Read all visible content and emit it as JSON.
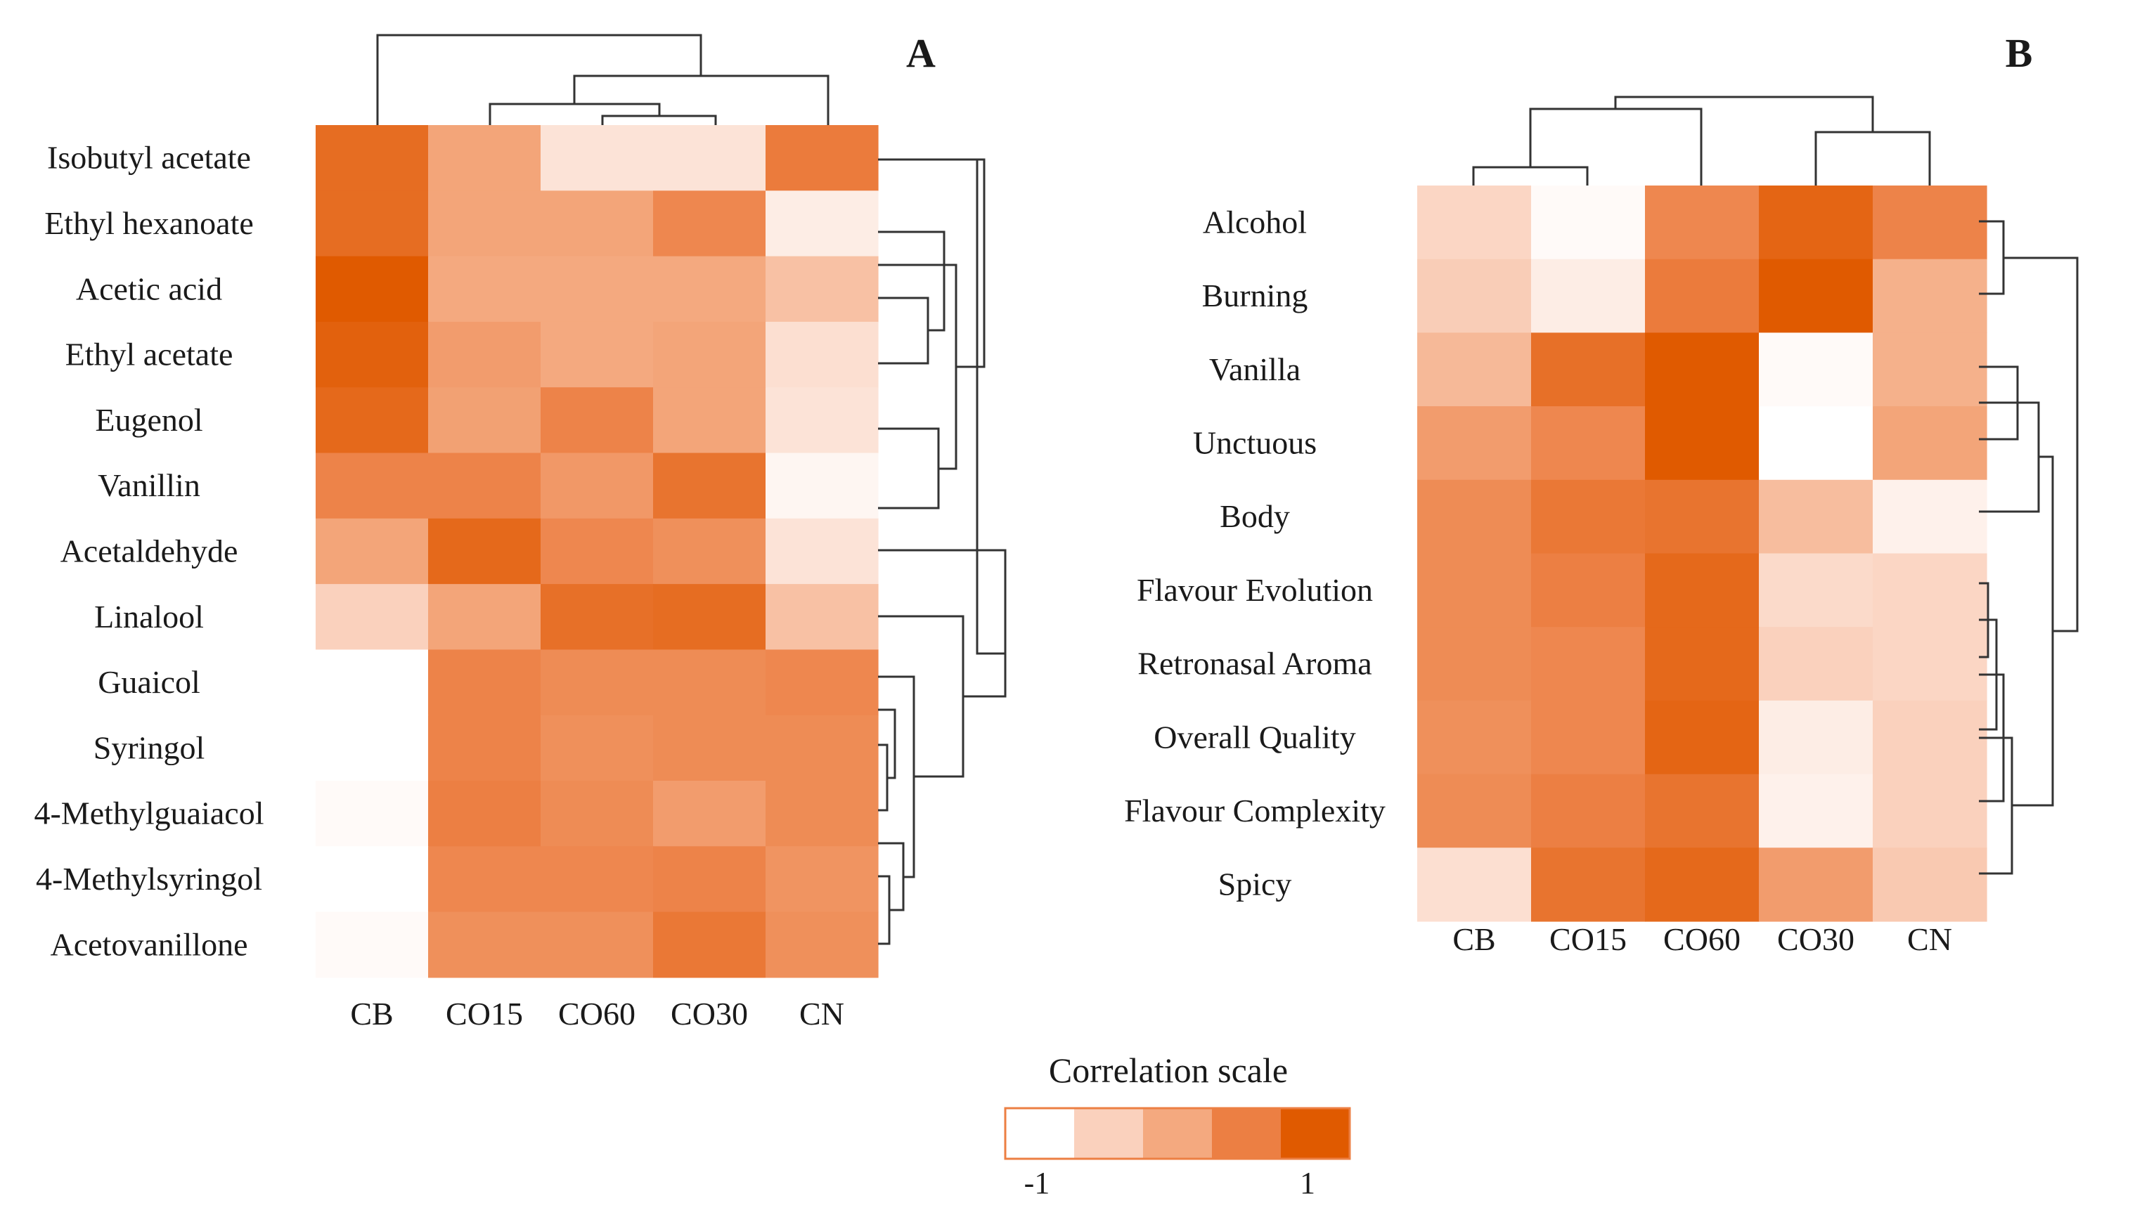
{
  "chart_data": [
    {
      "type": "heatmap",
      "panel": "A",
      "columns": [
        "CB",
        "CO15",
        "CO60",
        "CO30",
        "CN"
      ],
      "rows": [
        "Isobutyl acetate",
        "Ethyl hexanoate",
        "Acetic acid",
        "Ethyl acetate",
        "Eugenol",
        "Vanillin",
        "Acetaldehyde",
        "Linalool",
        "Guaicol",
        "Syringol",
        "4-Methylguaiacol",
        "4-Methylsyringol",
        "Acetovanillone"
      ],
      "values": [
        [
          0.75,
          0.05,
          -0.7,
          -0.7,
          0.55
        ],
        [
          0.75,
          0.05,
          0.05,
          0.4,
          -0.8
        ],
        [
          1.0,
          0.0,
          0.0,
          0.0,
          -0.3
        ],
        [
          0.9,
          0.15,
          0.0,
          0.05,
          -0.65
        ],
        [
          0.8,
          0.1,
          0.45,
          0.05,
          -0.7
        ],
        [
          0.45,
          0.45,
          0.2,
          0.65,
          -0.9
        ],
        [
          0.05,
          0.8,
          0.4,
          0.3,
          -0.7
        ],
        [
          -0.5,
          0.05,
          0.7,
          0.75,
          -0.3
        ],
        [
          -1.0,
          0.45,
          0.35,
          0.35,
          0.4
        ],
        [
          -1.0,
          0.45,
          0.3,
          0.35,
          0.35
        ],
        [
          -0.95,
          0.5,
          0.35,
          0.15,
          0.35
        ],
        [
          -1.0,
          0.4,
          0.4,
          0.45,
          0.25
        ],
        [
          -0.95,
          0.3,
          0.3,
          0.6,
          0.3
        ]
      ]
    },
    {
      "type": "heatmap",
      "panel": "B",
      "columns": [
        "CB",
        "CO15",
        "CO60",
        "CO30",
        "CN"
      ],
      "rows": [
        "Alcohol",
        "Burning",
        "Vanilla",
        "Unctuous",
        "Body",
        "Flavour Evolution",
        "Retronasal Aroma",
        "Overall Quality",
        "Flavour Complexity",
        "Spicy"
      ],
      "values": [
        [
          -0.55,
          -0.95,
          0.4,
          0.85,
          0.45
        ],
        [
          -0.45,
          -0.8,
          0.55,
          1.0,
          -0.1
        ],
        [
          -0.2,
          0.7,
          1.0,
          -0.95,
          -0.1
        ],
        [
          0.15,
          0.4,
          1.0,
          -1.0,
          0.05
        ],
        [
          0.35,
          0.6,
          0.65,
          -0.25,
          -0.85
        ],
        [
          0.35,
          0.5,
          0.8,
          -0.6,
          -0.55
        ],
        [
          0.35,
          0.4,
          0.8,
          -0.5,
          -0.55
        ],
        [
          0.3,
          0.4,
          0.85,
          -0.8,
          -0.5
        ],
        [
          0.35,
          0.5,
          0.65,
          -0.85,
          -0.5
        ],
        [
          -0.65,
          0.65,
          0.8,
          0.15,
          -0.4
        ]
      ]
    }
  ],
  "figure": {
    "panel_a_letter": "A",
    "panel_b_letter": "B",
    "scale": {
      "title": "Correlation scale",
      "min_label": "-1",
      "max_label": "1",
      "colors": [
        "#ffffff",
        "#fad1bd",
        "#f4a97f",
        "#ec7f43",
        "#e05a00"
      ]
    }
  }
}
